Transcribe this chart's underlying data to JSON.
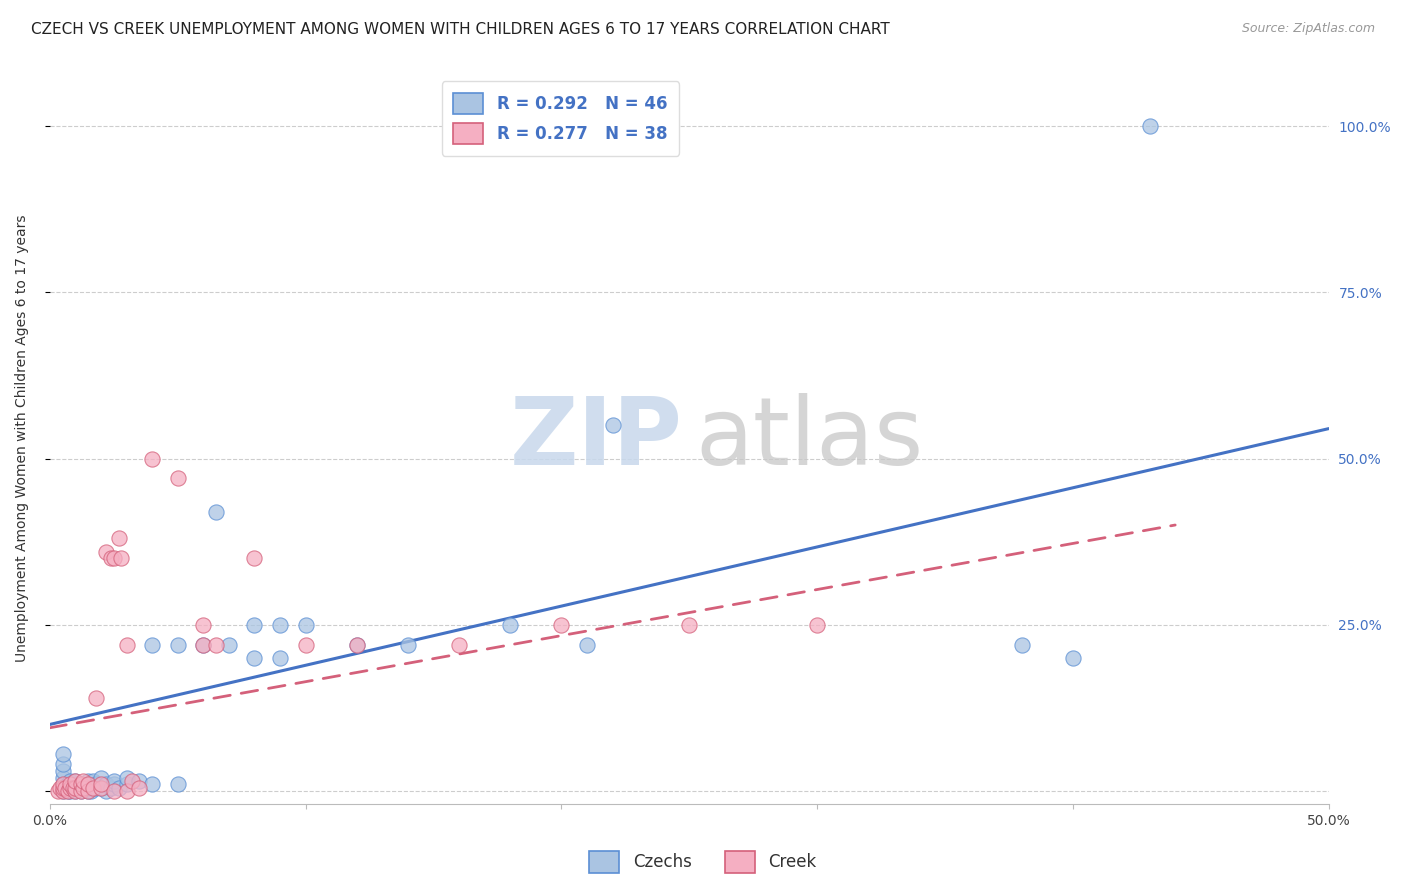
{
  "title": "CZECH VS CREEK UNEMPLOYMENT AMONG WOMEN WITH CHILDREN AGES 6 TO 17 YEARS CORRELATION CHART",
  "source": "Source: ZipAtlas.com",
  "ylabel": "Unemployment Among Women with Children Ages 6 to 17 years",
  "xlim": [
    0.0,
    0.5
  ],
  "ylim": [
    -0.02,
    1.08
  ],
  "xticks": [
    0.0,
    0.1,
    0.2,
    0.3,
    0.4,
    0.5
  ],
  "xticklabels": [
    "0.0%",
    "",
    "",
    "",
    "",
    "50.0%"
  ],
  "yticks_right": [
    0.0,
    0.25,
    0.5,
    0.75,
    1.0
  ],
  "yticklabels_right": [
    "",
    "25.0%",
    "50.0%",
    "75.0%",
    "100.0%"
  ],
  "czech_color": "#aac4e2",
  "creek_color": "#f5afc2",
  "czech_edge_color": "#5b8fd4",
  "creek_edge_color": "#d4607a",
  "czech_line_color": "#4472c4",
  "creek_line_color": "#d4607a",
  "background": "#ffffff",
  "grid_color": "#c8c8c8",
  "czech_points_x": [
    0.005,
    0.005,
    0.005,
    0.005,
    0.005,
    0.005,
    0.005,
    0.007,
    0.007,
    0.007,
    0.008,
    0.008,
    0.008,
    0.009,
    0.009,
    0.01,
    0.01,
    0.01,
    0.012,
    0.013,
    0.015,
    0.015,
    0.015,
    0.015,
    0.016,
    0.016,
    0.017,
    0.018,
    0.018,
    0.02,
    0.02,
    0.022,
    0.022,
    0.024,
    0.025,
    0.025,
    0.027,
    0.03,
    0.03,
    0.035,
    0.04,
    0.04,
    0.05,
    0.05,
    0.06,
    0.065,
    0.07,
    0.08,
    0.08,
    0.09,
    0.09,
    0.1,
    0.12,
    0.14,
    0.18,
    0.21,
    0.22,
    0.38,
    0.4,
    0.43
  ],
  "czech_points_y": [
    0.0,
    0.005,
    0.01,
    0.02,
    0.03,
    0.04,
    0.055,
    0.0,
    0.005,
    0.01,
    0.0,
    0.005,
    0.015,
    0.005,
    0.01,
    0.0,
    0.005,
    0.015,
    0.0,
    0.005,
    0.0,
    0.005,
    0.01,
    0.015,
    0.0,
    0.005,
    0.015,
    0.005,
    0.01,
    0.005,
    0.02,
    0.0,
    0.01,
    0.005,
    0.01,
    0.015,
    0.005,
    0.01,
    0.02,
    0.015,
    0.01,
    0.22,
    0.01,
    0.22,
    0.22,
    0.42,
    0.22,
    0.2,
    0.25,
    0.2,
    0.25,
    0.25,
    0.22,
    0.22,
    0.25,
    0.22,
    0.55,
    0.22,
    0.2,
    1.0
  ],
  "creek_points_x": [
    0.003,
    0.004,
    0.005,
    0.005,
    0.005,
    0.006,
    0.007,
    0.008,
    0.008,
    0.009,
    0.01,
    0.01,
    0.01,
    0.012,
    0.012,
    0.013,
    0.013,
    0.015,
    0.015,
    0.017,
    0.018,
    0.02,
    0.02,
    0.022,
    0.024,
    0.025,
    0.025,
    0.027,
    0.028,
    0.03,
    0.03,
    0.032,
    0.035,
    0.04,
    0.05,
    0.06,
    0.06,
    0.065,
    0.08,
    0.1,
    0.12,
    0.16,
    0.2,
    0.25,
    0.3
  ],
  "creek_points_y": [
    0.0,
    0.005,
    0.0,
    0.005,
    0.01,
    0.005,
    0.0,
    0.005,
    0.01,
    0.005,
    0.0,
    0.005,
    0.015,
    0.0,
    0.01,
    0.005,
    0.015,
    0.0,
    0.01,
    0.005,
    0.14,
    0.005,
    0.01,
    0.36,
    0.35,
    0.0,
    0.35,
    0.38,
    0.35,
    0.22,
    0.0,
    0.015,
    0.005,
    0.5,
    0.47,
    0.22,
    0.25,
    0.22,
    0.35,
    0.22,
    0.22,
    0.22,
    0.25,
    0.25,
    0.25
  ],
  "czech_line_x": [
    0.0,
    0.5
  ],
  "czech_line_y": [
    0.1,
    0.545
  ],
  "creek_line_x": [
    0.0,
    0.44
  ],
  "creek_line_y": [
    0.095,
    0.4
  ],
  "title_fontsize": 11,
  "label_fontsize": 10,
  "tick_fontsize": 10,
  "watermark_zip_color": "#c8d8ec",
  "watermark_atlas_color": "#c8c8c8"
}
